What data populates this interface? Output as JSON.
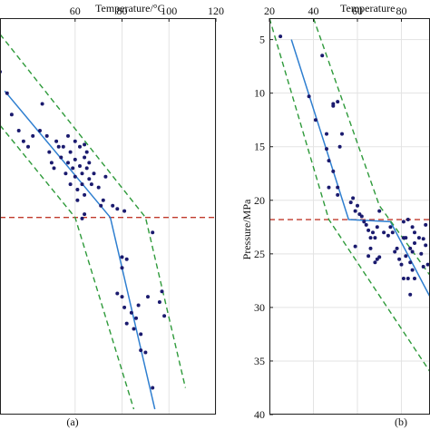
{
  "chart_data": [
    {
      "type": "scatter",
      "panel_label": "(a)",
      "xlabel": "Temperature/°C",
      "ylabel": "",
      "x_axis_position": "top",
      "xlim": [
        28,
        120
      ],
      "ylim": [
        40,
        3
      ],
      "x_ticks": [
        60,
        80,
        100,
        120
      ],
      "y_ticks": [],
      "grid": true,
      "reference_line": {
        "axis": "y",
        "value": 21.6,
        "style": "dashed",
        "color": "#c0392b"
      },
      "series": [
        {
          "kind": "points",
          "color": "#1a1a6e",
          "points": [
            [
              28,
              8
            ],
            [
              31,
              10
            ],
            [
              33,
              12
            ],
            [
              36,
              13.5
            ],
            [
              38,
              14.5
            ],
            [
              40,
              15
            ],
            [
              42,
              14
            ],
            [
              45,
              13.5
            ],
            [
              46,
              11
            ],
            [
              48,
              14
            ],
            [
              49,
              15.5
            ],
            [
              50,
              16.5
            ],
            [
              51,
              17
            ],
            [
              52,
              14.5
            ],
            [
              53,
              15
            ],
            [
              54,
              16
            ],
            [
              55,
              15
            ],
            [
              56,
              17.5
            ],
            [
              57,
              14
            ],
            [
              57,
              16.5
            ],
            [
              58,
              15.5
            ],
            [
              58,
              18.5
            ],
            [
              59,
              17
            ],
            [
              60,
              14.5
            ],
            [
              60,
              16.2
            ],
            [
              60,
              17.8
            ],
            [
              61,
              19
            ],
            [
              62,
              15
            ],
            [
              62,
              16.8
            ],
            [
              63,
              17.5
            ],
            [
              63,
              18.5
            ],
            [
              64,
              14.8
            ],
            [
              64,
              16
            ],
            [
              64,
              19.5
            ],
            [
              65,
              15.5
            ],
            [
              65,
              17
            ],
            [
              66,
              16.5
            ],
            [
              66,
              18
            ],
            [
              67,
              18.5
            ],
            [
              68,
              17.5
            ],
            [
              70,
              18.8
            ],
            [
              71,
              20.5
            ],
            [
              72,
              20
            ],
            [
              73,
              17.8
            ],
            [
              76,
              20.5
            ],
            [
              78,
              20.8
            ],
            [
              80,
              25.3
            ],
            [
              80,
              26.3
            ],
            [
              81,
              21
            ],
            [
              82,
              25.5
            ],
            [
              78,
              28.7
            ],
            [
              80,
              29
            ],
            [
              81,
              30
            ],
            [
              82,
              31.5
            ],
            [
              84,
              30.5
            ],
            [
              85,
              32
            ],
            [
              86,
              31
            ],
            [
              87,
              29.8
            ],
            [
              88,
              32.5
            ],
            [
              88,
              34
            ],
            [
              90,
              34.2
            ],
            [
              91,
              29
            ],
            [
              93,
              23
            ],
            [
              93,
              37.5
            ],
            [
              96,
              29.5
            ],
            [
              97,
              28.5
            ],
            [
              98,
              30.8
            ],
            [
              63,
              21.7
            ],
            [
              64,
              21.3
            ],
            [
              61,
              20
            ]
          ]
        },
        {
          "kind": "line",
          "name": "",
          "color": "#2f7fd0",
          "style": "solid",
          "points": [
            [
              30,
              9.8
            ],
            [
              75,
              21.6
            ],
            [
              94,
              39.5
            ]
          ]
        },
        {
          "kind": "line",
          "name": "",
          "color": "#2e9a3a",
          "style": "dashed",
          "points": [
            [
              28,
              4.5
            ],
            [
              90,
              21.6
            ],
            [
              107,
              37.5
            ]
          ]
        },
        {
          "kind": "line",
          "name": "",
          "color": "#2e9a3a",
          "style": "dashed",
          "points": [
            [
              28,
              13
            ],
            [
              60,
              21.6
            ],
            [
              85,
              39.5
            ]
          ]
        }
      ]
    },
    {
      "type": "scatter",
      "panel_label": "(b)",
      "xlabel": "Temperature",
      "ylabel": "Pressure/MPa",
      "x_axis_position": "top",
      "xlim": [
        20,
        93
      ],
      "ylim": [
        40,
        3
      ],
      "x_ticks": [
        20,
        40,
        60,
        80
      ],
      "y_ticks": [
        5,
        10,
        15,
        20,
        25,
        30,
        35,
        40
      ],
      "grid": true,
      "reference_line": {
        "axis": "y",
        "value": 21.8,
        "style": "dashed",
        "color": "#c0392b"
      },
      "series": [
        {
          "kind": "points",
          "color": "#1a1a6e",
          "points": [
            [
              25,
              4.7
            ],
            [
              44,
              6.5
            ],
            [
              49,
              11
            ],
            [
              49,
              11.2
            ],
            [
              38,
              10.3
            ],
            [
              41,
              12.5
            ],
            [
              46,
              13.8
            ],
            [
              46,
              15.2
            ],
            [
              47,
              16.3
            ],
            [
              51,
              10.8
            ],
            [
              52,
              15
            ],
            [
              53,
              13.8
            ],
            [
              49,
              17.3
            ],
            [
              47,
              18.8
            ],
            [
              51,
              18.8
            ],
            [
              51,
              19.5
            ],
            [
              57,
              20.2
            ],
            [
              58,
              19.8
            ],
            [
              59,
              21
            ],
            [
              60,
              20.5
            ],
            [
              61,
              21.3
            ],
            [
              62,
              21.5
            ],
            [
              63,
              22
            ],
            [
              64,
              22.3
            ],
            [
              65,
              22.8
            ],
            [
              66,
              23.5
            ],
            [
              67,
              23
            ],
            [
              68,
              23.5
            ],
            [
              69,
              22.5
            ],
            [
              70,
              21
            ],
            [
              59,
              24.3
            ],
            [
              65,
              25.2
            ],
            [
              66,
              24.5
            ],
            [
              68,
              25.8
            ],
            [
              69,
              25.5
            ],
            [
              70,
              25.3
            ],
            [
              72,
              23
            ],
            [
              74,
              23.3
            ],
            [
              75,
              22.5
            ],
            [
              76,
              23
            ],
            [
              77,
              24.8
            ],
            [
              78,
              24.5
            ],
            [
              79,
              25.5
            ],
            [
              80,
              26
            ],
            [
              81,
              23.5
            ],
            [
              82,
              23.5
            ],
            [
              84,
              25.8
            ],
            [
              85,
              22.5
            ],
            [
              86,
              23
            ],
            [
              86,
              24
            ],
            [
              88,
              23.5
            ],
            [
              89,
              25
            ],
            [
              90,
              26.2
            ],
            [
              91,
              24.2
            ],
            [
              92,
              26
            ],
            [
              81,
              22
            ],
            [
              83,
              21.8
            ],
            [
              84,
              24.5
            ],
            [
              85,
              26.5
            ],
            [
              86,
              27.3
            ],
            [
              81,
              27.3
            ],
            [
              83,
              27.3
            ],
            [
              84,
              28.8
            ],
            [
              82,
              25.2
            ],
            [
              85,
              24.8
            ],
            [
              91,
              22.3
            ],
            [
              90,
              23.6
            ]
          ]
        },
        {
          "kind": "line",
          "name": "",
          "color": "#2f7fd0",
          "style": "solid",
          "points": [
            [
              30,
              5
            ],
            [
              56,
              21.8
            ],
            [
              75,
              22
            ],
            [
              93,
              29
            ]
          ]
        },
        {
          "kind": "line",
          "name": "",
          "color": "#2e9a3a",
          "style": "dashed",
          "points": [
            [
              20,
              3
            ],
            [
              47,
              21.8
            ],
            [
              93,
              36
            ]
          ]
        },
        {
          "kind": "line",
          "name": "",
          "color": "#2e9a3a",
          "style": "dashed",
          "points": [
            [
              40,
              3
            ],
            [
              70,
              20.5
            ],
            [
              93,
              27
            ]
          ]
        }
      ]
    }
  ],
  "colors": {
    "points": "#1a1a6e",
    "fit_line": "#2f7fd0",
    "envelope": "#2e9a3a",
    "reference": "#c0392b",
    "grid": "#e3e3e3",
    "axis": "#222222"
  }
}
